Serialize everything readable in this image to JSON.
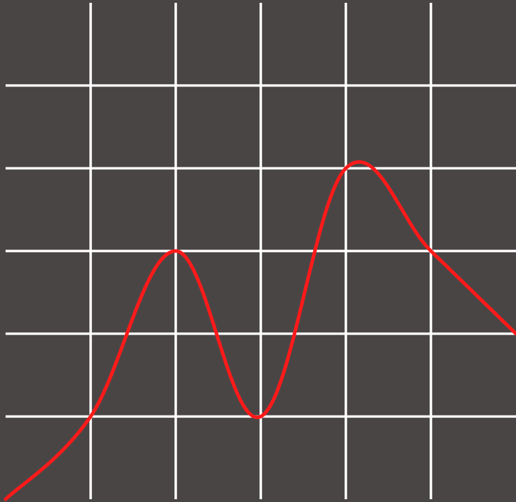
{
  "chart_data": {
    "type": "line",
    "grid": true,
    "xlim": [
      0,
      6
    ],
    "ylim": [
      0,
      6
    ],
    "series": [
      {
        "values": [
          [
            0,
            0
          ],
          [
            1,
            1
          ],
          [
            2,
            3
          ],
          [
            3,
            1
          ],
          [
            4,
            4
          ],
          [
            5,
            3
          ],
          [
            6,
            2
          ]
        ],
        "color": "#ff1a1a"
      }
    ],
    "background_color": "#4a4545",
    "grid_color": "#ffffff"
  }
}
